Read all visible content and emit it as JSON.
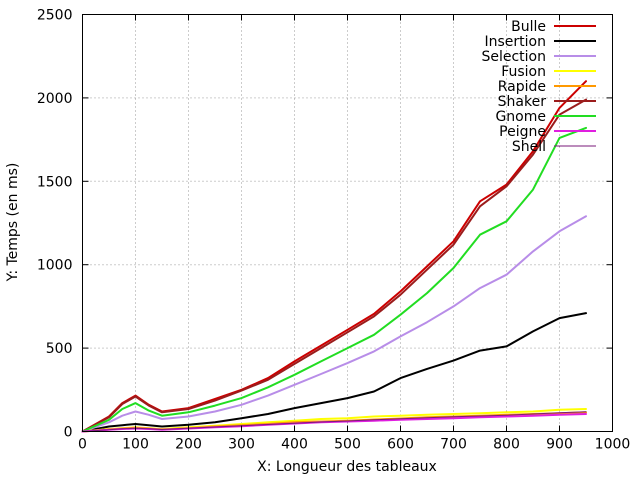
{
  "chart_data": {
    "type": "line",
    "xlabel": "X: Longueur des tableaux",
    "ylabel": "Y: Temps (en ms)",
    "xlim": [
      0,
      1000
    ],
    "ylim": [
      0,
      2500
    ],
    "xticks": [
      0,
      100,
      200,
      300,
      400,
      500,
      600,
      700,
      800,
      900,
      1000
    ],
    "yticks": [
      0,
      500,
      1000,
      1500,
      2000,
      2500
    ],
    "grid": true,
    "legend_position": "top-right",
    "x": [
      0,
      50,
      75,
      100,
      125,
      150,
      200,
      250,
      300,
      350,
      400,
      450,
      500,
      550,
      600,
      650,
      700,
      750,
      800,
      850,
      900,
      950
    ],
    "series": [
      {
        "name": "Bulle",
        "color": "#cc0000",
        "width": 2,
        "values": [
          0,
          90,
          170,
          215,
          160,
          120,
          140,
          195,
          250,
          320,
          420,
          515,
          610,
          705,
          840,
          990,
          1140,
          1380,
          1480,
          1680,
          1940,
          2100
        ]
      },
      {
        "name": "Insertion",
        "color": "#000000",
        "width": 2,
        "values": [
          0,
          30,
          38,
          45,
          38,
          30,
          40,
          55,
          80,
          105,
          140,
          170,
          200,
          240,
          320,
          375,
          425,
          485,
          510,
          600,
          680,
          710
        ]
      },
      {
        "name": "Selection",
        "color": "#b88de8",
        "width": 2,
        "values": [
          0,
          55,
          95,
          120,
          100,
          75,
          90,
          120,
          160,
          215,
          280,
          345,
          410,
          480,
          570,
          655,
          750,
          860,
          940,
          1080,
          1200,
          1290
        ]
      },
      {
        "name": "Fusion",
        "color": "#ffff00",
        "width": 2,
        "values": [
          0,
          15,
          20,
          25,
          20,
          15,
          25,
          35,
          45,
          55,
          65,
          75,
          80,
          90,
          95,
          100,
          105,
          110,
          115,
          120,
          130,
          135
        ]
      },
      {
        "name": "Rapide",
        "color": "#ff9900",
        "width": 2,
        "values": [
          0,
          12,
          18,
          22,
          18,
          12,
          20,
          30,
          38,
          45,
          55,
          60,
          65,
          72,
          78,
          85,
          90,
          95,
          100,
          105,
          110,
          115
        ]
      },
      {
        "name": "Shaker",
        "color": "#9b1c1c",
        "width": 2,
        "values": [
          0,
          85,
          165,
          210,
          155,
          115,
          135,
          185,
          245,
          310,
          405,
          500,
          595,
          690,
          820,
          970,
          1120,
          1350,
          1470,
          1660,
          1900,
          1990
        ]
      },
      {
        "name": "Gnome",
        "color": "#22dd22",
        "width": 2,
        "values": [
          0,
          70,
          135,
          170,
          125,
          95,
          115,
          155,
          200,
          265,
          340,
          420,
          500,
          580,
          700,
          830,
          980,
          1180,
          1260,
          1450,
          1760,
          1820
        ]
      },
      {
        "name": "Peigne",
        "color": "#e01ee0",
        "width": 2,
        "values": [
          0,
          10,
          15,
          18,
          15,
          10,
          18,
          25,
          32,
          40,
          48,
          55,
          60,
          65,
          70,
          75,
          80,
          85,
          90,
          95,
          100,
          105
        ]
      },
      {
        "name": "Shell",
        "color": "#7a1a7a",
        "width": 1,
        "values": [
          0,
          10,
          16,
          20,
          16,
          12,
          20,
          27,
          35,
          42,
          50,
          57,
          63,
          70,
          76,
          82,
          88,
          93,
          98,
          105,
          112,
          118
        ]
      }
    ]
  }
}
